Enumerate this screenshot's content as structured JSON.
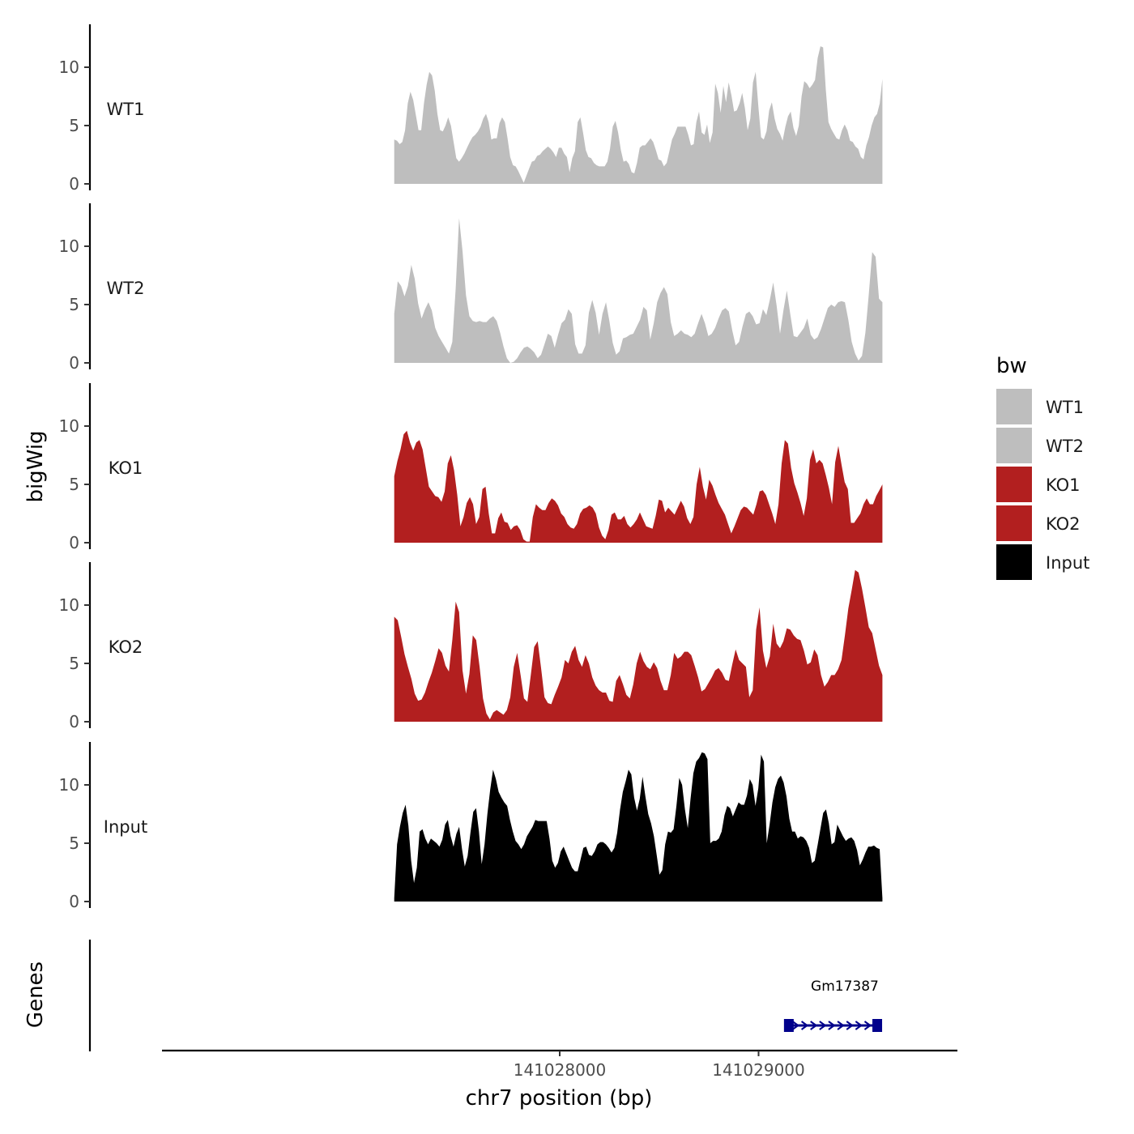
{
  "chart_data": {
    "type": "area",
    "title": "",
    "xlabel": "chr7 position (bp)",
    "ylabel": "bigWig",
    "genes_axis_label": "Genes",
    "x_range": [
      141026000,
      141030000
    ],
    "x_ticks": [
      141028000,
      141029000
    ],
    "x_tick_labels": [
      "141028000",
      "141029000"
    ],
    "ylim": [
      0,
      13.5
    ],
    "y_ticks": [
      0,
      5,
      10
    ],
    "y_tick_labels": [
      "0",
      "5",
      "10"
    ],
    "track_x_range": [
      141027168,
      141029623
    ],
    "legend": {
      "title": "bw",
      "entries": [
        {
          "label": "WT1",
          "color": "#bebebe"
        },
        {
          "label": "WT2",
          "color": "#bebebe"
        },
        {
          "label": "KO1",
          "color": "#b21f1f"
        },
        {
          "label": "KO2",
          "color": "#b21f1f"
        },
        {
          "label": "Input",
          "color": "#000000"
        }
      ]
    },
    "series": [
      {
        "name": "WT1",
        "color": "#bebebe",
        "values": [
          3.8,
          3.7,
          3.4,
          3.6,
          4.6,
          6.9,
          7.9,
          7.2,
          5.9,
          4.6,
          4.6,
          6.9,
          8.5,
          9.6,
          9.3,
          8.0,
          6.0,
          4.6,
          4.5,
          5.0,
          5.7,
          5.0,
          3.6,
          2.2,
          1.9,
          2.2,
          2.6,
          3.1,
          3.6,
          4.0,
          4.2,
          4.5,
          4.9,
          5.6,
          6.0,
          5.3,
          3.8,
          3.9,
          3.9,
          5.2,
          5.7,
          5.3,
          3.9,
          2.3,
          1.6,
          1.5,
          1.1,
          0.6,
          0.1,
          0.7,
          1.3,
          1.9,
          2.0,
          2.4,
          2.5,
          2.8,
          3.0,
          3.2,
          3.0,
          2.7,
          2.3,
          3.1,
          3.1,
          2.6,
          2.3,
          1.0,
          2.2,
          2.8,
          5.3,
          5.7,
          4.4,
          2.9,
          2.3,
          2.2,
          1.8,
          1.6,
          1.5,
          1.5,
          1.5,
          1.9,
          3.0,
          4.9,
          5.4,
          4.4,
          2.9,
          1.9,
          2.0,
          1.7,
          1.0,
          0.9,
          1.8,
          3.1,
          3.3,
          3.3,
          3.6,
          3.9,
          3.6,
          2.9,
          2.1,
          2.0,
          1.5,
          1.8,
          2.8,
          3.8,
          4.3,
          4.9,
          4.9,
          4.9,
          4.9,
          4.2,
          3.3,
          3.4,
          5.3,
          6.2,
          4.4,
          4.2,
          5.1,
          3.5,
          4.4,
          8.6,
          7.8,
          6.1,
          8.4,
          7.0,
          8.7,
          7.6,
          6.2,
          6.3,
          6.9,
          7.8,
          6.5,
          4.6,
          5.6,
          8.7,
          9.6,
          6.6,
          4.0,
          3.8,
          4.5,
          6.3,
          7.0,
          5.6,
          4.7,
          4.3,
          3.7,
          4.9,
          5.8,
          6.2,
          4.8,
          4.1,
          5.0,
          7.5,
          8.8,
          8.6,
          8.2,
          8.5,
          8.9,
          10.8,
          11.8,
          11.7,
          8.1,
          5.3,
          4.7,
          4.3,
          3.9,
          3.8,
          4.6,
          5.1,
          4.6,
          3.7,
          3.6,
          3.2,
          3.0,
          2.3,
          2.1,
          3.3,
          4.0,
          5.0,
          5.7,
          6.0,
          6.9,
          9.0
        ]
      },
      {
        "name": "WT2",
        "color": "#bebebe",
        "values": [
          4.2,
          7.0,
          6.6,
          5.7,
          6.6,
          8.4,
          7.2,
          5.1,
          3.8,
          4.6,
          5.2,
          4.5,
          3.0,
          2.3,
          1.8,
          1.3,
          0.8,
          1.8,
          6.4,
          12.4,
          9.6,
          5.8,
          4.0,
          3.6,
          3.5,
          3.6,
          3.5,
          3.5,
          3.8,
          4.0,
          3.6,
          2.6,
          1.4,
          0.4,
          0.0,
          0.1,
          0.4,
          0.9,
          1.3,
          1.4,
          1.2,
          0.9,
          0.4,
          0.7,
          1.6,
          2.5,
          2.3,
          1.3,
          2.4,
          3.4,
          3.7,
          4.6,
          4.2,
          1.6,
          0.8,
          0.8,
          1.5,
          4.3,
          5.4,
          4.3,
          2.4,
          4.2,
          5.2,
          3.6,
          1.7,
          0.7,
          1.0,
          2.1,
          2.2,
          2.4,
          2.5,
          3.1,
          3.7,
          4.8,
          4.5,
          2.0,
          3.4,
          5.2,
          6.0,
          6.5,
          5.9,
          3.5,
          2.3,
          2.5,
          2.8,
          2.5,
          2.4,
          2.2,
          2.5,
          3.4,
          4.2,
          3.4,
          2.3,
          2.5,
          3.0,
          3.8,
          4.5,
          4.7,
          4.4,
          2.8,
          1.5,
          1.8,
          3.1,
          4.2,
          4.4,
          4.0,
          3.3,
          3.4,
          4.6,
          4.1,
          5.4,
          6.9,
          4.9,
          2.5,
          4.5,
          6.2,
          4.2,
          2.3,
          2.2,
          2.6,
          3.0,
          3.8,
          2.4,
          2.0,
          2.2,
          2.9,
          3.8,
          4.7,
          5.0,
          4.8,
          5.2,
          5.3,
          5.2,
          3.7,
          1.8,
          0.8,
          0.2,
          0.6,
          2.6,
          5.9,
          9.5,
          9.1,
          5.5,
          5.2
        ]
      },
      {
        "name": "KO1",
        "color": "#b21f1f",
        "values": [
          5.7,
          7.0,
          8.0,
          9.3,
          9.6,
          8.6,
          7.9,
          8.6,
          8.8,
          8.0,
          6.4,
          4.8,
          4.4,
          4.0,
          3.9,
          3.5,
          4.4,
          6.8,
          7.5,
          6.2,
          4.1,
          1.4,
          2.2,
          3.4,
          3.9,
          3.3,
          1.6,
          2.2,
          4.6,
          4.8,
          2.5,
          0.8,
          0.8,
          2.1,
          2.6,
          1.8,
          1.7,
          1.1,
          1.4,
          1.5,
          1.1,
          0.3,
          0.1,
          0.1,
          2.2,
          3.3,
          3.0,
          2.8,
          2.8,
          3.4,
          3.8,
          3.6,
          3.2,
          2.5,
          2.2,
          1.6,
          1.3,
          1.2,
          1.6,
          2.5,
          2.9,
          3.0,
          3.2,
          3.0,
          2.5,
          1.3,
          0.6,
          0.3,
          1.1,
          2.4,
          2.6,
          2.0,
          2.0,
          2.3,
          1.6,
          1.3,
          1.6,
          2.0,
          2.6,
          2.0,
          1.4,
          1.3,
          1.2,
          2.3,
          3.7,
          3.6,
          2.6,
          3.0,
          2.7,
          2.4,
          3.0,
          3.6,
          3.1,
          2.1,
          1.6,
          2.2,
          5.0,
          6.5,
          4.8,
          3.7,
          5.4,
          4.9,
          4.1,
          3.4,
          2.9,
          2.4,
          1.6,
          0.8,
          1.4,
          2.1,
          2.8,
          3.1,
          3.0,
          2.7,
          2.4,
          3.3,
          4.4,
          4.5,
          4.1,
          3.3,
          2.5,
          1.6,
          3.3,
          6.8,
          8.8,
          8.5,
          6.4,
          5.1,
          4.3,
          3.4,
          2.3,
          3.8,
          7.1,
          8.0,
          6.8,
          7.1,
          6.8,
          5.8,
          4.7,
          3.3,
          6.9,
          8.3,
          6.7,
          5.2,
          4.6,
          1.7,
          1.7,
          2.1,
          2.5,
          3.3,
          3.8,
          3.3,
          3.3,
          4.0,
          4.5,
          5.0
        ]
      },
      {
        "name": "KO2",
        "color": "#b21f1f",
        "values": [
          9.0,
          8.7,
          7.3,
          5.8,
          4.7,
          3.7,
          2.4,
          1.8,
          1.9,
          2.5,
          3.4,
          4.2,
          5.2,
          6.3,
          5.9,
          4.8,
          4.3,
          7.0,
          10.3,
          9.4,
          4.4,
          2.4,
          4.1,
          7.4,
          7.0,
          4.7,
          2.0,
          0.7,
          0.2,
          0.8,
          1.0,
          0.8,
          0.6,
          1.0,
          2.1,
          4.7,
          5.9,
          4.0,
          2.0,
          1.7,
          4.0,
          6.4,
          6.9,
          4.6,
          2.1,
          1.6,
          1.5,
          2.3,
          3.0,
          3.8,
          5.3,
          5.0,
          6.0,
          6.5,
          5.3,
          4.7,
          5.7,
          5.0,
          3.8,
          3.1,
          2.7,
          2.5,
          2.5,
          1.8,
          1.7,
          3.5,
          4.0,
          3.2,
          2.3,
          2.0,
          3.2,
          5.0,
          6.0,
          5.2,
          4.7,
          4.5,
          5.1,
          4.6,
          3.5,
          2.7,
          2.7,
          4.0,
          5.9,
          5.4,
          5.6,
          6.0,
          6.0,
          5.7,
          4.8,
          3.8,
          2.6,
          2.8,
          3.3,
          3.8,
          4.4,
          4.6,
          4.2,
          3.6,
          3.5,
          4.9,
          6.2,
          5.3,
          5.0,
          4.7,
          2.1,
          2.7,
          7.9,
          9.8,
          6.1,
          4.6,
          5.6,
          8.4,
          6.7,
          6.3,
          6.9,
          8.0,
          7.9,
          7.4,
          7.1,
          7.0,
          6.1,
          4.9,
          5.1,
          6.2,
          5.7,
          4.0,
          3.0,
          3.4,
          4.0,
          4.0,
          4.5,
          5.3,
          7.4,
          9.7,
          11.3,
          13.0,
          12.8,
          11.4,
          9.8,
          8.1,
          7.6,
          6.2,
          4.8,
          4.0
        ]
      },
      {
        "name": "Input",
        "color": "#000000",
        "values": [
          0.3,
          4.9,
          6.4,
          7.6,
          8.3,
          6.5,
          3.5,
          1.6,
          2.9,
          6.0,
          6.2,
          5.4,
          4.9,
          5.4,
          5.2,
          5.0,
          4.7,
          5.3,
          6.6,
          7.0,
          5.6,
          4.7,
          5.8,
          6.4,
          4.5,
          3.0,
          3.9,
          5.9,
          7.7,
          8.0,
          6.0,
          3.2,
          4.9,
          7.5,
          9.6,
          11.3,
          10.5,
          9.4,
          8.9,
          8.5,
          8.2,
          7.0,
          6.0,
          5.2,
          4.9,
          4.5,
          4.9,
          5.6,
          6.0,
          6.4,
          7.0,
          6.9,
          6.9,
          6.9,
          6.9,
          5.4,
          3.5,
          2.9,
          3.3,
          4.3,
          4.7,
          4.1,
          3.5,
          2.9,
          2.6,
          2.6,
          3.6,
          4.6,
          4.7,
          4.0,
          3.9,
          4.3,
          4.9,
          5.1,
          5.1,
          4.9,
          4.6,
          4.2,
          4.6,
          5.9,
          7.9,
          9.4,
          10.3,
          11.3,
          10.9,
          8.9,
          7.8,
          8.8,
          10.7,
          9.0,
          7.5,
          6.7,
          5.6,
          4.0,
          2.3,
          2.7,
          4.9,
          6.0,
          5.9,
          6.2,
          8.2,
          10.6,
          10.0,
          7.9,
          6.3,
          8.8,
          11.0,
          12.0,
          12.3,
          12.8,
          12.7,
          12.2,
          5.0,
          5.2,
          5.2,
          5.4,
          6.0,
          7.4,
          8.2,
          8.0,
          7.3,
          7.9,
          8.5,
          8.3,
          8.3,
          9.1,
          10.5,
          10.0,
          8.2,
          9.7,
          12.6,
          12.0,
          5.0,
          6.6,
          8.5,
          9.8,
          10.5,
          10.8,
          10.2,
          9.0,
          7.1,
          6.0,
          6.0,
          5.4,
          5.6,
          5.5,
          5.2,
          4.6,
          3.3,
          3.5,
          4.8,
          6.2,
          7.6,
          7.9,
          6.7,
          4.9,
          5.1,
          6.6,
          6.1,
          5.6,
          5.2,
          5.4,
          5.5,
          5.2,
          4.4,
          3.1,
          3.6,
          4.2,
          4.7,
          4.7,
          4.8,
          4.6,
          4.5,
          0.3
        ]
      }
    ],
    "genes": [
      {
        "name": "Gm17387",
        "start": 141029140,
        "end": 141029605,
        "strand": "+",
        "color": "#00008b"
      }
    ]
  }
}
